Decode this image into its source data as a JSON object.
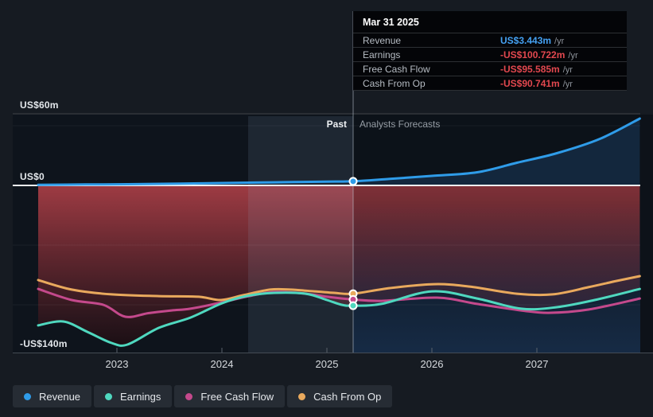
{
  "tooltip": {
    "date": "Mar 31 2025",
    "rows": [
      {
        "label": "Revenue",
        "value": "US$3.443m",
        "suffix": "/yr",
        "color": "#45a1f2"
      },
      {
        "label": "Earnings",
        "value": "-US$100.722m",
        "suffix": "/yr",
        "color": "#e2484f"
      },
      {
        "label": "Free Cash Flow",
        "value": "-US$95.585m",
        "suffix": "/yr",
        "color": "#e2484f"
      },
      {
        "label": "Cash From Op",
        "value": "-US$90.741m",
        "suffix": "/yr",
        "color": "#e2484f"
      }
    ]
  },
  "annotations": {
    "past": "Past",
    "forecast": "Analysts Forecasts"
  },
  "legend": {
    "items": [
      {
        "label": "Revenue",
        "color": "#2f9ce9"
      },
      {
        "label": "Earnings",
        "color": "#4fd8bf"
      },
      {
        "label": "Free Cash Flow",
        "color": "#c4498c"
      },
      {
        "label": "Cash From Op",
        "color": "#e9a95d"
      }
    ]
  },
  "chart_data": {
    "type": "line",
    "x_axis": {
      "unit": "year",
      "ticks_t": [
        2023,
        2024,
        2025,
        2026,
        2027
      ],
      "tick_labels": [
        "2023",
        "2024",
        "2025",
        "2026",
        "2027"
      ],
      "range_t": [
        2022.25,
        2027.98
      ]
    },
    "y_axis": {
      "unit": "US$ millions",
      "labels": [
        {
          "v": 60,
          "text": "US$60m"
        },
        {
          "v": 0,
          "text": "US$0"
        },
        {
          "v": -140,
          "text": "-US$140m"
        }
      ],
      "gridline_bright": 60,
      "gridlines_faint": [
        50,
        -50,
        -100
      ],
      "zero_line": 0,
      "range": [
        -140,
        60
      ]
    },
    "divider_t": 2025.25,
    "highlight_band_t": [
      2024.25,
      2025.25
    ],
    "series": [
      {
        "name": "Revenue",
        "color": "#2f9ce9",
        "points": [
          [
            2022.25,
            0.5
          ],
          [
            2022.7,
            0.8
          ],
          [
            2023.1,
            1.0
          ],
          [
            2023.6,
            1.5
          ],
          [
            2024.0,
            2.0
          ],
          [
            2024.5,
            2.6
          ],
          [
            2025.0,
            3.2
          ],
          [
            2025.25,
            3.443
          ],
          [
            2025.6,
            5.5
          ],
          [
            2026.0,
            8.0
          ],
          [
            2026.43,
            11.0
          ],
          [
            2026.81,
            19.0
          ],
          [
            2027.19,
            27.0
          ],
          [
            2027.6,
            39.0
          ],
          [
            2027.98,
            56.0
          ]
        ]
      },
      {
        "name": "Earnings",
        "color": "#4fd8bf",
        "points": [
          [
            2022.25,
            -117.3
          ],
          [
            2022.49,
            -114.0
          ],
          [
            2022.72,
            -122.7
          ],
          [
            2022.95,
            -132.0
          ],
          [
            2023.1,
            -133.3
          ],
          [
            2023.4,
            -119.3
          ],
          [
            2023.7,
            -110.7
          ],
          [
            2024.0,
            -98.7
          ],
          [
            2024.23,
            -92.7
          ],
          [
            2024.5,
            -90.0
          ],
          [
            2024.8,
            -90.7
          ],
          [
            2025.0,
            -96.0
          ],
          [
            2025.14,
            -100.0
          ],
          [
            2025.25,
            -100.722
          ],
          [
            2025.52,
            -99.3
          ],
          [
            2026.0,
            -88.7
          ],
          [
            2026.43,
            -94.7
          ],
          [
            2026.85,
            -103.3
          ],
          [
            2027.19,
            -102.0
          ],
          [
            2027.55,
            -96.0
          ],
          [
            2027.98,
            -86.7
          ]
        ]
      },
      {
        "name": "Free Cash Flow",
        "color": "#c4498c",
        "points": [
          [
            2022.25,
            -86.7
          ],
          [
            2022.57,
            -96.0
          ],
          [
            2022.87,
            -100.0
          ],
          [
            2023.08,
            -110.0
          ],
          [
            2023.3,
            -107.0
          ],
          [
            2023.52,
            -104.7
          ],
          [
            2023.7,
            -103.3
          ],
          [
            2024.0,
            -98.0
          ],
          [
            2024.23,
            -93.3
          ],
          [
            2024.5,
            -89.3
          ],
          [
            2024.8,
            -90.7
          ],
          [
            2025.0,
            -93.3
          ],
          [
            2025.25,
            -95.585
          ],
          [
            2025.52,
            -96.7
          ],
          [
            2026.05,
            -94.0
          ],
          [
            2026.43,
            -99.3
          ],
          [
            2026.85,
            -104.7
          ],
          [
            2027.11,
            -106.7
          ],
          [
            2027.49,
            -104.0
          ],
          [
            2027.98,
            -94.7
          ]
        ]
      },
      {
        "name": "Cash From Op",
        "color": "#e9a95d",
        "points": [
          [
            2022.25,
            -79.3
          ],
          [
            2022.57,
            -87.3
          ],
          [
            2022.95,
            -91.3
          ],
          [
            2023.4,
            -92.7
          ],
          [
            2023.78,
            -93.3
          ],
          [
            2023.99,
            -96.0
          ],
          [
            2024.2,
            -92.0
          ],
          [
            2024.46,
            -87.3
          ],
          [
            2024.65,
            -87.3
          ],
          [
            2024.88,
            -88.7
          ],
          [
            2025.07,
            -90.0
          ],
          [
            2025.25,
            -90.741
          ],
          [
            2025.6,
            -86.0
          ],
          [
            2026.02,
            -82.7
          ],
          [
            2026.36,
            -84.7
          ],
          [
            2026.81,
            -90.7
          ],
          [
            2027.15,
            -91.3
          ],
          [
            2027.49,
            -85.3
          ],
          [
            2027.76,
            -80.0
          ],
          [
            2027.98,
            -76.0
          ]
        ]
      }
    ],
    "markers": [
      {
        "series": "Revenue",
        "v": 3.443
      },
      {
        "series": "Cash From Op",
        "v": -90.741
      },
      {
        "series": "Free Cash Flow",
        "v": -95.585
      },
      {
        "series": "Earnings",
        "v": -100.722
      }
    ],
    "legend_position": "bottom",
    "grid": true
  }
}
